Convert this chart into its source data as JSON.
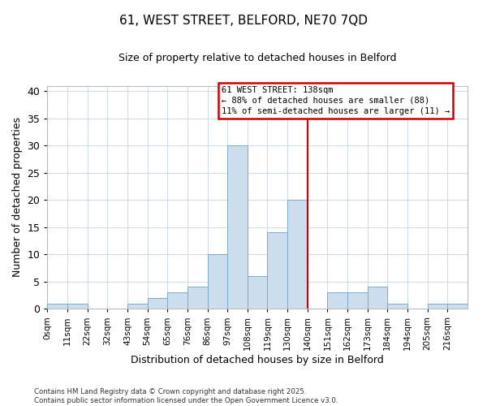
{
  "title_line1": "61, WEST STREET, BELFORD, NE70 7QD",
  "title_line2": "Size of property relative to detached houses in Belford",
  "xlabel": "Distribution of detached houses by size in Belford",
  "ylabel": "Number of detached properties",
  "footer": "Contains HM Land Registry data © Crown copyright and database right 2025.\nContains public sector information licensed under the Open Government Licence v3.0.",
  "bin_labels": [
    "0sqm",
    "11sqm",
    "22sqm",
    "32sqm",
    "43sqm",
    "54sqm",
    "65sqm",
    "76sqm",
    "86sqm",
    "97sqm",
    "108sqm",
    "119sqm",
    "130sqm",
    "140sqm",
    "151sqm",
    "162sqm",
    "173sqm",
    "184sqm",
    "194sqm",
    "205sqm",
    "216sqm"
  ],
  "bar_values": [
    1,
    1,
    0,
    0,
    1,
    2,
    3,
    4,
    10,
    30,
    6,
    14,
    20,
    0,
    3,
    3,
    4,
    1,
    0,
    1,
    1
  ],
  "bar_color": "#ccdded",
  "bar_edgecolor": "#7aaacc",
  "grid_color": "#d0dde8",
  "vline_color": "#cc0000",
  "ylim": [
    0,
    41
  ],
  "yticks": [
    0,
    5,
    10,
    15,
    20,
    25,
    30,
    35,
    40
  ],
  "annotation_title": "61 WEST STREET: 138sqm",
  "annotation_line2": "← 88% of detached houses are smaller (88)",
  "annotation_line3": "11% of semi-detached houses are larger (11) →",
  "annotation_box_edgecolor": "#cc0000",
  "bin_width": 11
}
